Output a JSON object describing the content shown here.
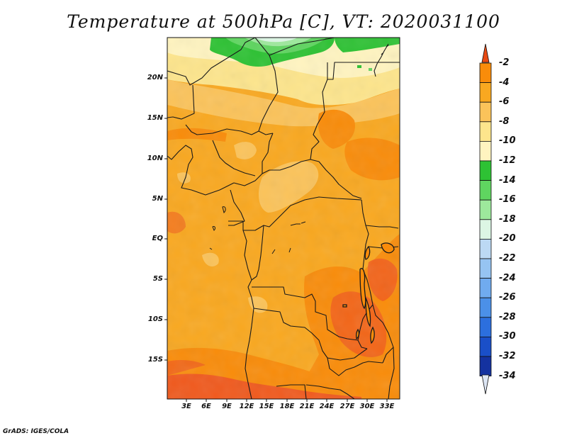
{
  "title": "Temperature at 500hPa [C], VT: 2020031100",
  "credit": "GrADS: IGES/COLA",
  "map": {
    "lat_labels": [
      "20N",
      "15N",
      "10N",
      "5N",
      "EQ",
      "5S",
      "10S",
      "15S"
    ],
    "lon_labels": [
      "3E",
      "6E",
      "9E",
      "12E",
      "15E",
      "18E",
      "21E",
      "24E",
      "27E",
      "30E",
      "33E"
    ]
  },
  "colorbar": {
    "labels": [
      "-2",
      "-4",
      "-6",
      "-8",
      "-10",
      "-12",
      "-14",
      "-16",
      "-18",
      "-20",
      "-22",
      "-24",
      "-26",
      "-28",
      "-30",
      "-32",
      "-34"
    ],
    "colors": [
      "#f05a1e",
      "#f98c0a",
      "#f9a820",
      "#fbc35a",
      "#fde58c",
      "#fff4c0",
      "#2ec234",
      "#5fd560",
      "#9de89c",
      "#dcf6e4",
      "#bcd9f4",
      "#96c4f2",
      "#70abef",
      "#4b90e8",
      "#2c6fde",
      "#1a4fc8",
      "#1432a0",
      "#0c166e"
    ],
    "min_over_color": "#e84a14",
    "min_under_color": "#dde6f4"
  }
}
